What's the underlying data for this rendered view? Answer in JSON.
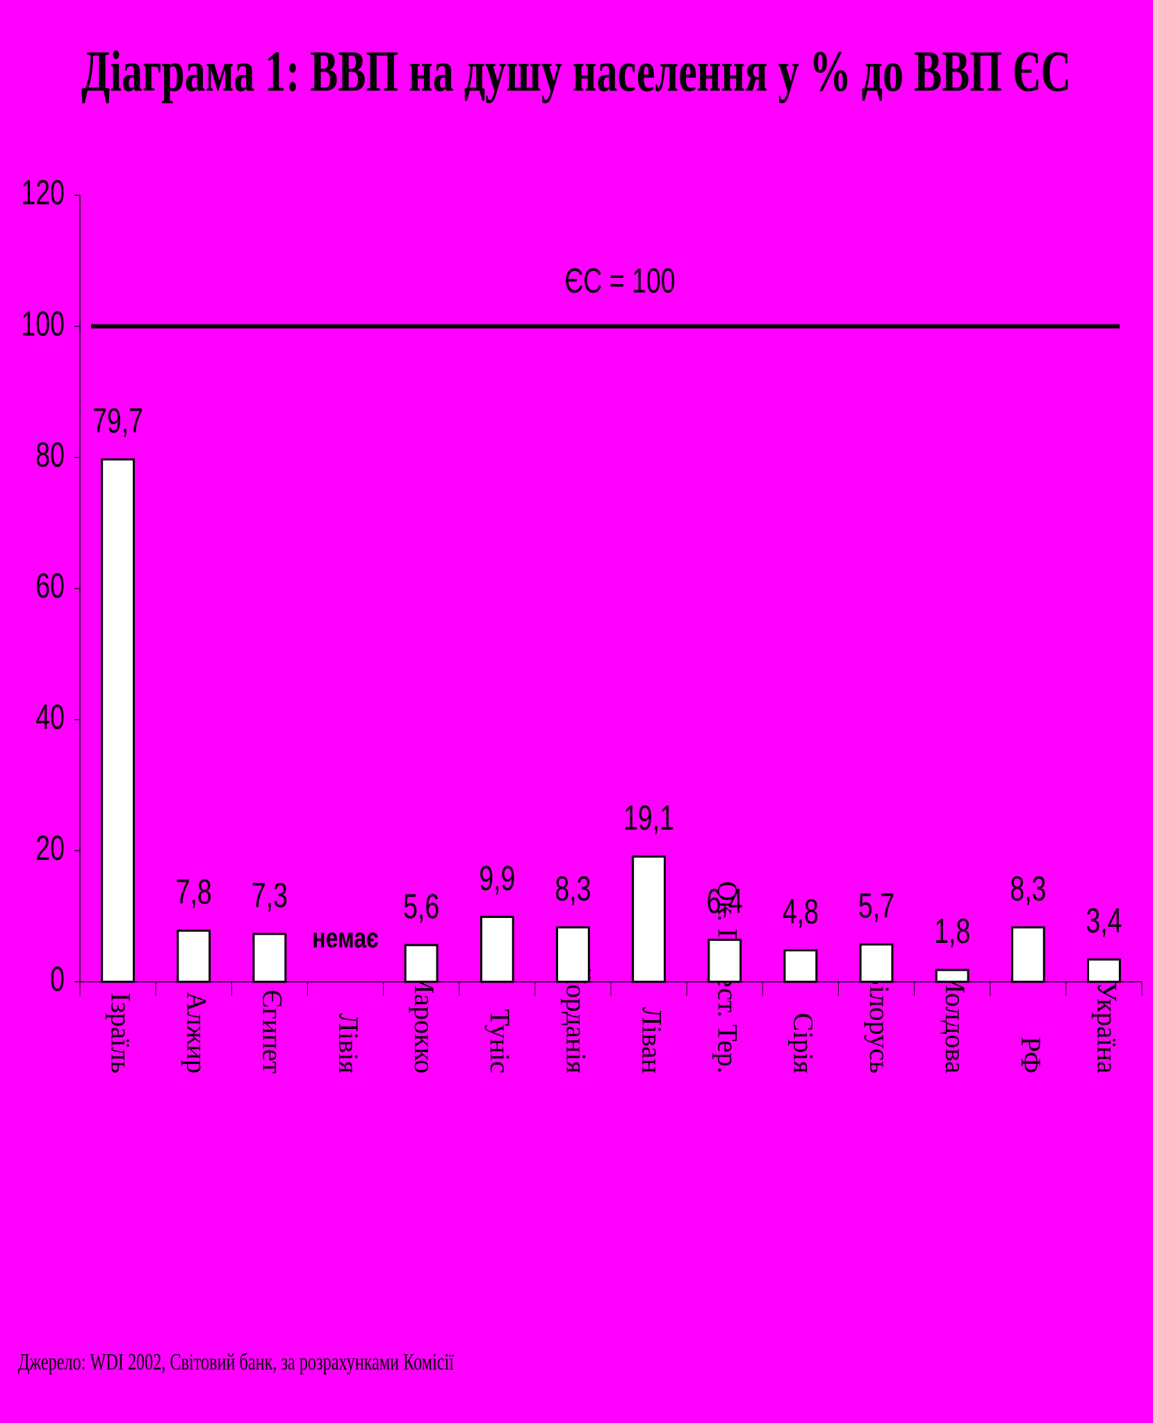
{
  "chart_data": {
    "type": "bar",
    "title": "Діаграма 1: ВВП на душу населення у % до ВВП ЄС",
    "categories": [
      "Ізраїль",
      "Алжир",
      "Єгипет",
      "Лівія",
      "Марокко",
      "Туніс",
      "Йорданія",
      "Ліван",
      "Ок. Палест. Тер.",
      "Сірія",
      "Білорусь",
      "Молдова",
      "РФ",
      "Україна"
    ],
    "values": [
      79.7,
      7.8,
      7.3,
      null,
      5.6,
      9.9,
      8.3,
      19.1,
      6.4,
      4.8,
      5.7,
      1.8,
      8.3,
      3.4
    ],
    "value_labels": [
      "79,7",
      "7,8",
      "7,3",
      null,
      "5,6",
      "9,9",
      "8,3",
      "19,1",
      "6,4",
      "4,8",
      "5,7",
      "1,8",
      "8,3",
      "3,4"
    ],
    "no_data_label": "немає",
    "reference_line": {
      "value": 100,
      "label": "ЄС = 100"
    },
    "color": "#ffffff",
    "background": "#ff00ff",
    "ylim": [
      0,
      120
    ],
    "yticks": [
      0,
      20,
      40,
      60,
      80,
      100,
      120
    ],
    "grid": false,
    "source": "Джерело: WDI 2002, Світовий банк, за розрахунками Комісії"
  }
}
